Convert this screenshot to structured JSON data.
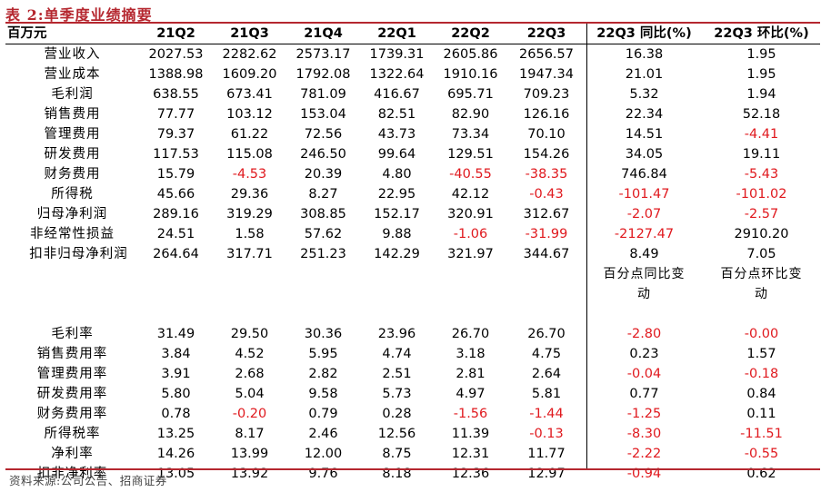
{
  "title": "表 2:单季度业绩摘要",
  "header": {
    "unit": "百万元",
    "periods": [
      "21Q2",
      "21Q3",
      "21Q4",
      "22Q1",
      "22Q2",
      "22Q3"
    ],
    "yoy": "22Q3 同比(%)",
    "qoq": "22Q3 环比(%)"
  },
  "rows": [
    {
      "label": "营业收入",
      "values": [
        "2027.53",
        "2282.62",
        "2573.17",
        "1739.31",
        "2605.86",
        "2656.57"
      ],
      "yoy": "16.38",
      "qoq": "1.95"
    },
    {
      "label": "营业成本",
      "values": [
        "1388.98",
        "1609.20",
        "1792.08",
        "1322.64",
        "1910.16",
        "1947.34"
      ],
      "yoy": "21.01",
      "qoq": "1.95"
    },
    {
      "label": "毛利润",
      "values": [
        "638.55",
        "673.41",
        "781.09",
        "416.67",
        "695.71",
        "709.23"
      ],
      "yoy": "5.32",
      "qoq": "1.94"
    },
    {
      "label": "销售费用",
      "values": [
        "77.77",
        "103.12",
        "153.04",
        "82.51",
        "82.90",
        "126.16"
      ],
      "yoy": "22.34",
      "qoq": "52.18"
    },
    {
      "label": "管理费用",
      "values": [
        "79.37",
        "61.22",
        "72.56",
        "43.73",
        "73.34",
        "70.10"
      ],
      "yoy": "14.51",
      "qoq": "-4.41"
    },
    {
      "label": "研发费用",
      "values": [
        "117.53",
        "115.08",
        "246.50",
        "99.64",
        "129.51",
        "154.26"
      ],
      "yoy": "34.05",
      "qoq": "19.11"
    },
    {
      "label": "财务费用",
      "values": [
        "15.79",
        "-4.53",
        "20.39",
        "4.80",
        "-40.55",
        "-38.35"
      ],
      "yoy": "746.84",
      "qoq": "-5.43"
    },
    {
      "label": "所得税",
      "values": [
        "45.66",
        "29.36",
        "8.27",
        "22.95",
        "42.12",
        "-0.43"
      ],
      "yoy": "-101.47",
      "qoq": "-101.02"
    },
    {
      "label": "归母净利润",
      "values": [
        "289.16",
        "319.29",
        "308.85",
        "152.17",
        "320.91",
        "312.67"
      ],
      "yoy": "-2.07",
      "qoq": "-2.57"
    },
    {
      "label": "非经常性损益",
      "values": [
        "24.51",
        "1.58",
        "57.62",
        "9.88",
        "-1.06",
        "-31.99"
      ],
      "yoy": "-2127.47",
      "qoq": "2910.20"
    },
    {
      "label": "扣非归母净利润",
      "values": [
        "264.64",
        "317.71",
        "251.23",
        "142.29",
        "321.97",
        "344.67"
      ],
      "yoy": "8.49",
      "qoq": "7.05"
    }
  ],
  "subheader": {
    "yoy_line1": "百分点同比变",
    "yoy_line2": "动",
    "qoq_line1": "百分点环比变",
    "qoq_line2": "动"
  },
  "ratio_rows": [
    {
      "label": "毛利率",
      "values": [
        "31.49",
        "29.50",
        "30.36",
        "23.96",
        "26.70",
        "26.70"
      ],
      "yoy": "-2.80",
      "qoq": "-0.00"
    },
    {
      "label": "销售费用率",
      "values": [
        "3.84",
        "4.52",
        "5.95",
        "4.74",
        "3.18",
        "4.75"
      ],
      "yoy": "0.23",
      "qoq": "1.57"
    },
    {
      "label": "管理费用率",
      "values": [
        "3.91",
        "2.68",
        "2.82",
        "2.51",
        "2.81",
        "2.64"
      ],
      "yoy": "-0.04",
      "qoq": "-0.18"
    },
    {
      "label": "研发费用率",
      "values": [
        "5.80",
        "5.04",
        "9.58",
        "5.73",
        "4.97",
        "5.81"
      ],
      "yoy": "0.77",
      "qoq": "0.84"
    },
    {
      "label": "财务费用率",
      "values": [
        "0.78",
        "-0.20",
        "0.79",
        "0.28",
        "-1.56",
        "-1.44"
      ],
      "yoy": "-1.25",
      "qoq": "0.11"
    },
    {
      "label": "所得税率",
      "values": [
        "13.25",
        "8.17",
        "2.46",
        "12.56",
        "11.39",
        "-0.13"
      ],
      "yoy": "-8.30",
      "qoq": "-11.51"
    },
    {
      "label": "净利率",
      "values": [
        "14.26",
        "13.99",
        "12.00",
        "8.75",
        "12.31",
        "11.77"
      ],
      "yoy": "-2.22",
      "qoq": "-0.55"
    },
    {
      "label": "扣非净利率",
      "values": [
        "13.05",
        "13.92",
        "9.76",
        "8.18",
        "12.36",
        "12.97"
      ],
      "yoy": "-0.94",
      "qoq": "0.62"
    }
  ],
  "source": "资料来源:公司公告、招商证券",
  "colors": {
    "accent": "#b5272f",
    "negative": "#e0191e",
    "text": "#000000"
  }
}
